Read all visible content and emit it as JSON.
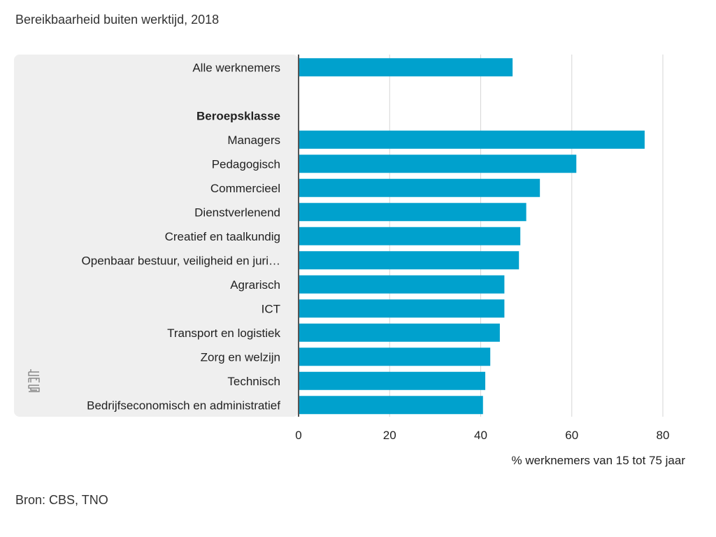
{
  "chart_data": {
    "type": "bar",
    "orientation": "horizontal",
    "title": "Bereikbaarheid buiten werktijd, 2018",
    "source": "Bron: CBS, TNO",
    "xlabel": "% werknemers van 15 tot 75 jaar",
    "xlim": [
      0,
      80
    ],
    "xticks": [
      0,
      20,
      40,
      60,
      80
    ],
    "grid": true,
    "bar_color": "#00a1cd",
    "panel_color": "#efefef",
    "logo_icon": "cbs-logo-icon",
    "rows": [
      {
        "label": "Alle werknemers",
        "value": 47,
        "bold": false
      },
      {
        "label": "",
        "value": null,
        "bold": false
      },
      {
        "label": "Beroepsklasse",
        "value": null,
        "bold": true
      },
      {
        "label": "Managers",
        "value": 76,
        "bold": false
      },
      {
        "label": "Pedagogisch",
        "value": 61,
        "bold": false
      },
      {
        "label": "Commercieel",
        "value": 53,
        "bold": false
      },
      {
        "label": "Dienstverlenend",
        "value": 50,
        "bold": false
      },
      {
        "label": "Creatief en taalkundig",
        "value": 48.7,
        "bold": false
      },
      {
        "label": "Openbaar bestuur, veiligheid en juri…",
        "value": 48.4,
        "bold": false
      },
      {
        "label": "Agrarisch",
        "value": 45.2,
        "bold": false
      },
      {
        "label": "ICT",
        "value": 45.2,
        "bold": false
      },
      {
        "label": "Transport en logistiek",
        "value": 44.2,
        "bold": false
      },
      {
        "label": "Zorg en welzijn",
        "value": 42.1,
        "bold": false
      },
      {
        "label": "Technisch",
        "value": 41,
        "bold": false
      },
      {
        "label": "Bedrijfseconomisch en administratief",
        "value": 40.5,
        "bold": false
      }
    ]
  }
}
